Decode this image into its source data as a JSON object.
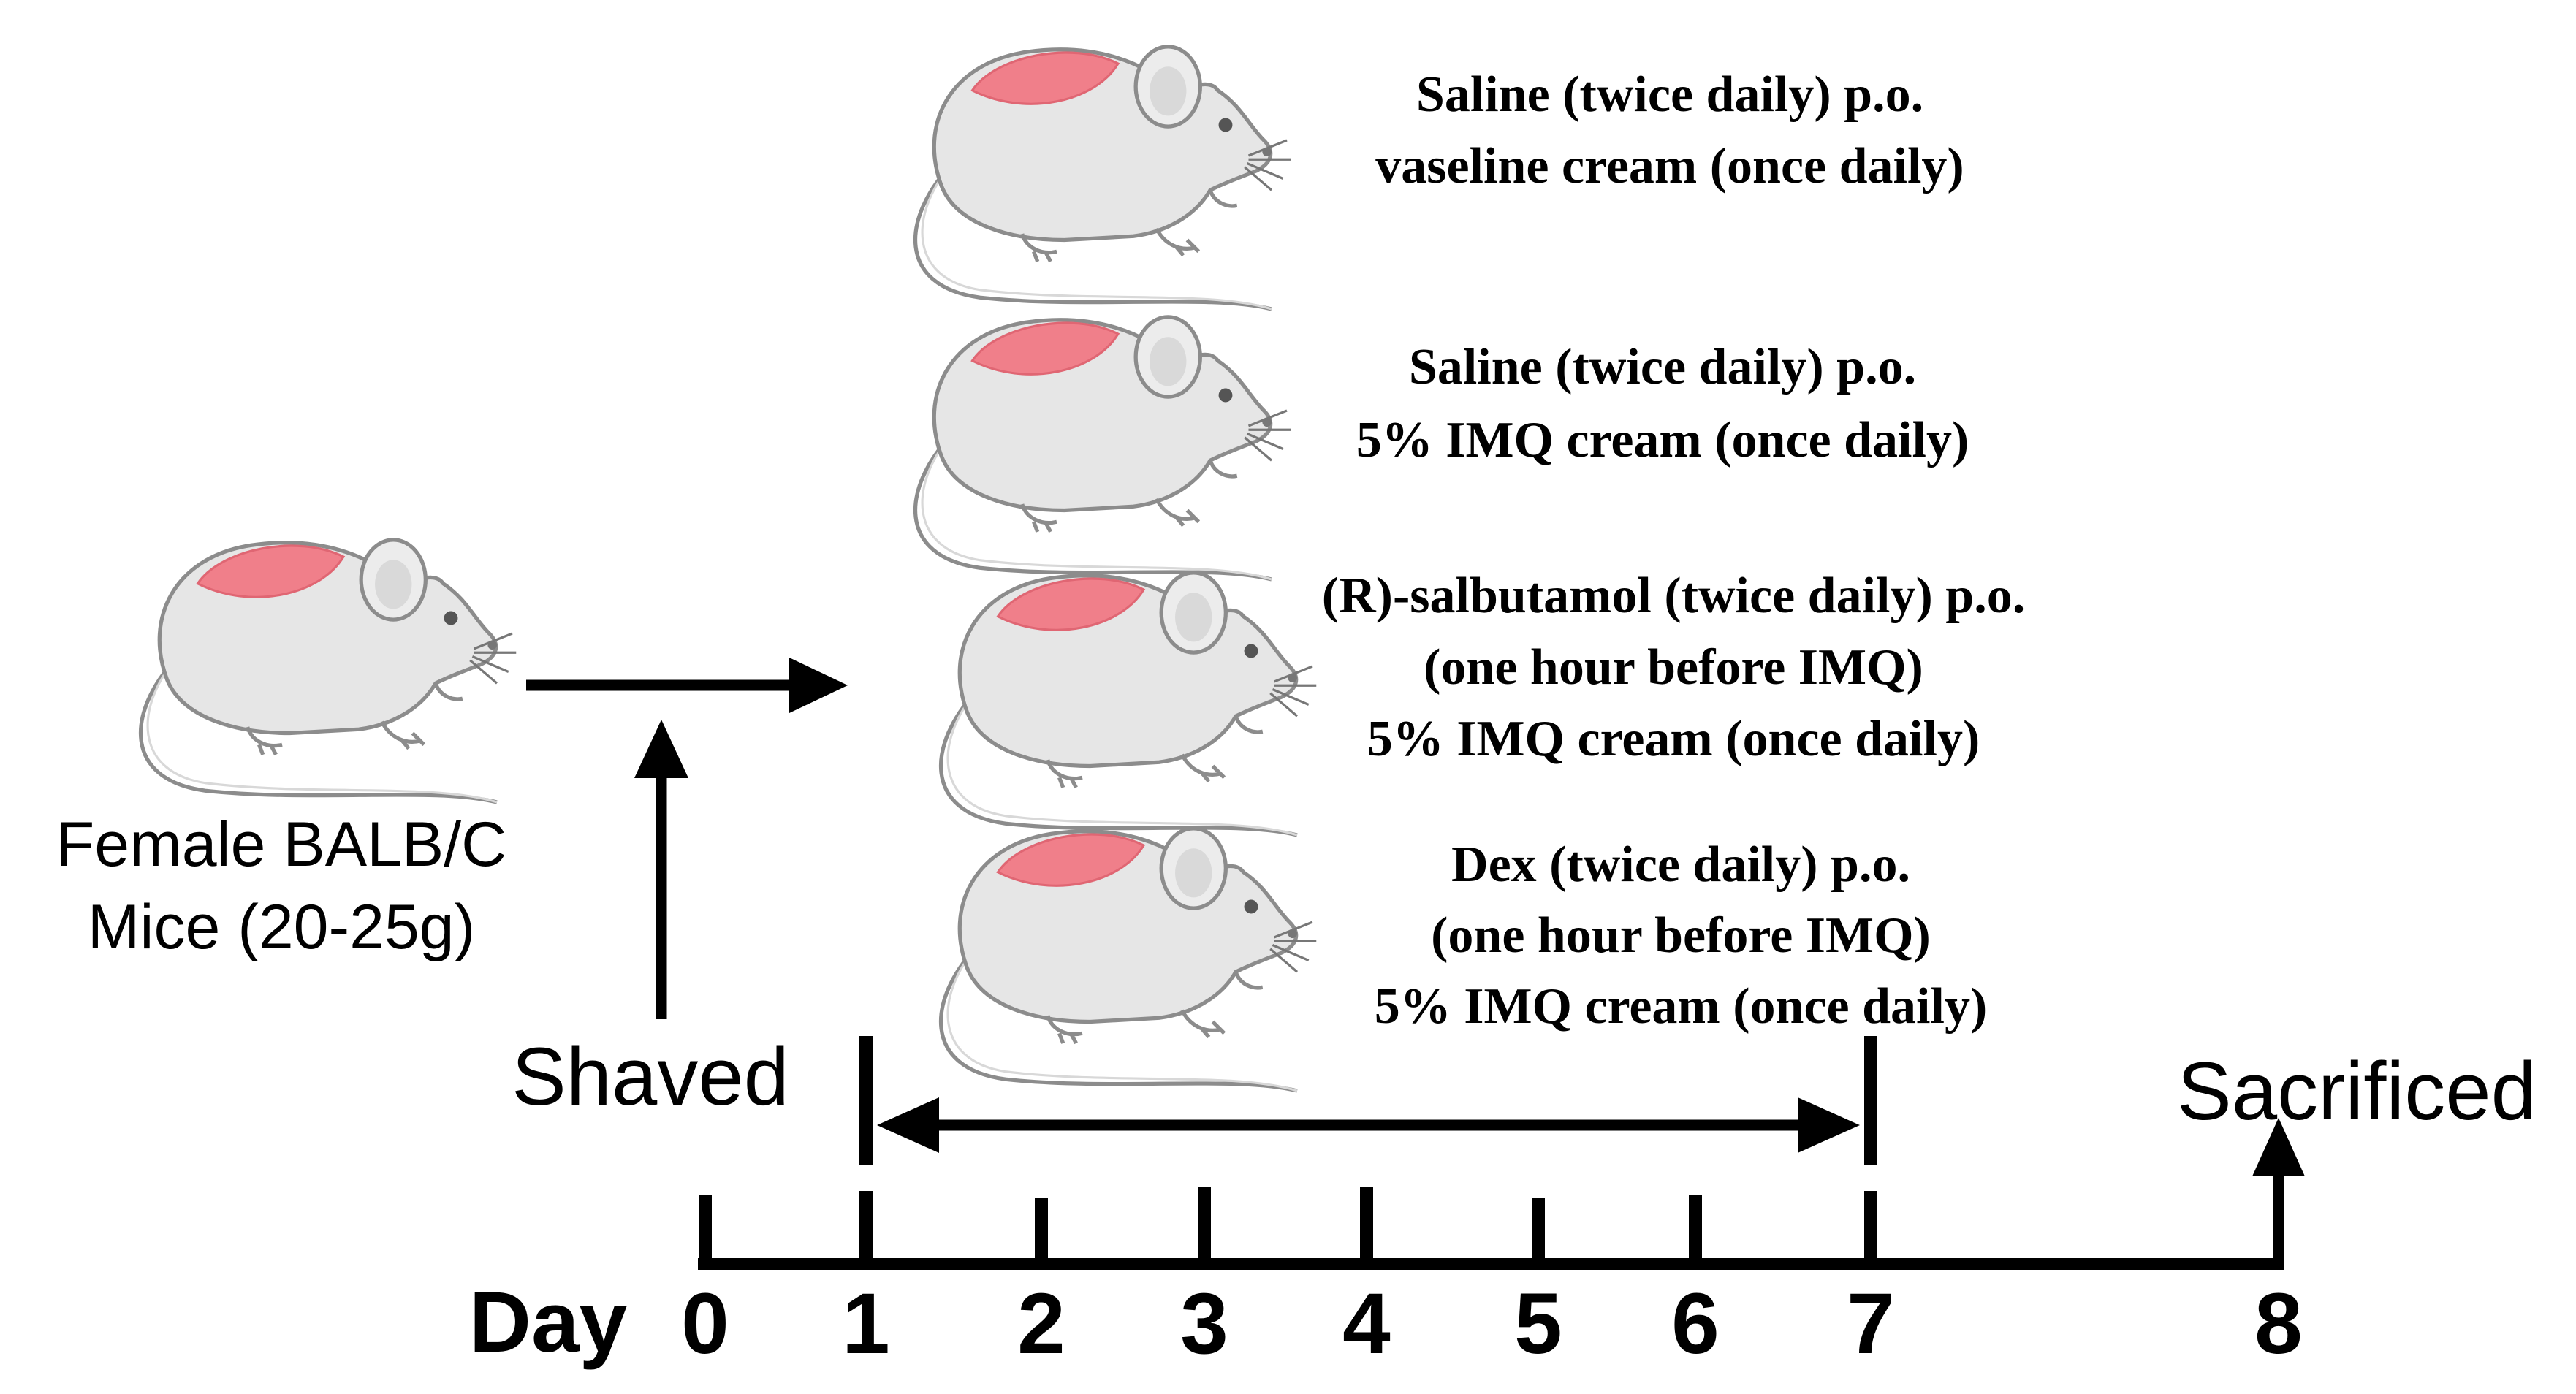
{
  "subject": {
    "line1": "Female BALB/C",
    "line2": "Mice (20-25g)"
  },
  "timeline": {
    "axis_label": "Day",
    "days": [
      "0",
      "1",
      "2",
      "3",
      "4",
      "5",
      "6",
      "7",
      "8"
    ],
    "shaved_label": "Shaved",
    "sacrificed_label": "Sacrificed"
  },
  "groups": [
    {
      "lines": [
        "Saline (twice daily)  p.o.",
        "vaseline cream  (once daily)"
      ]
    },
    {
      "lines": [
        "Saline (twice daily)  p.o.",
        "5% IMQ cream (once daily)"
      ]
    },
    {
      "lines": [
        "(R)-salbutamol (twice daily) p.o.",
        "(one hour before IMQ)",
        "5% IMQ cream (once daily)"
      ]
    },
    {
      "lines": [
        "Dex (twice daily) p.o.",
        "(one hour before IMQ)",
        "5% IMQ cream (once daily)"
      ]
    }
  ],
  "colors": {
    "ink": "#000000",
    "mouse_body": "#e6e6e6",
    "mouse_outline": "#8c8c8c",
    "shaved_patch": "#f07f8a"
  }
}
